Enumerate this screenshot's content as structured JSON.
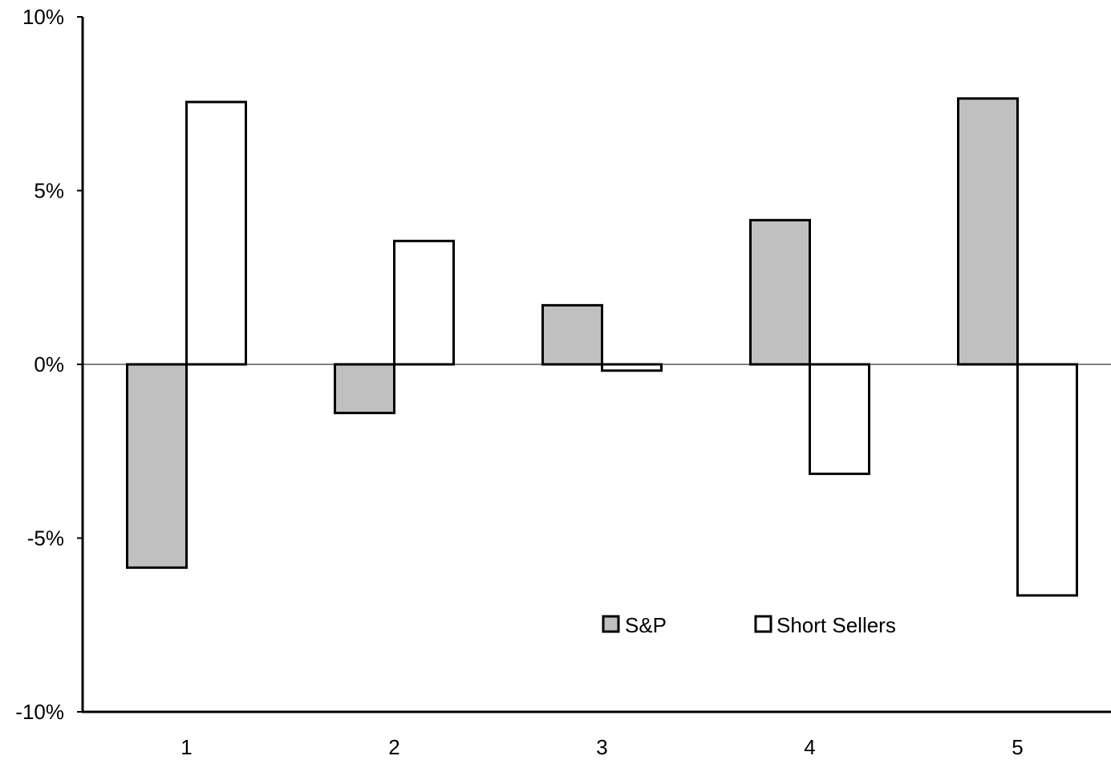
{
  "chart_data": {
    "type": "bar",
    "categories": [
      "1",
      "2",
      "3",
      "4",
      "5"
    ],
    "series": [
      {
        "name": "S&P",
        "values": [
          -5.85,
          -1.4,
          1.7,
          4.15,
          7.65
        ],
        "color": "#c0c0c0"
      },
      {
        "name": "Short Sellers",
        "values": [
          7.55,
          3.55,
          -0.18,
          -3.15,
          -6.65
        ],
        "color": "#ffffff"
      }
    ],
    "ylim": [
      -10,
      10
    ],
    "y_ticks": [
      10,
      5,
      0,
      -5,
      -10
    ],
    "y_tick_labels": [
      "10%",
      "5%",
      "0%",
      "-5%",
      "-10%"
    ],
    "title": "",
    "xlabel": "",
    "ylabel": "",
    "grid": false,
    "legend_position": "bottom-center",
    "zero_line": true
  }
}
